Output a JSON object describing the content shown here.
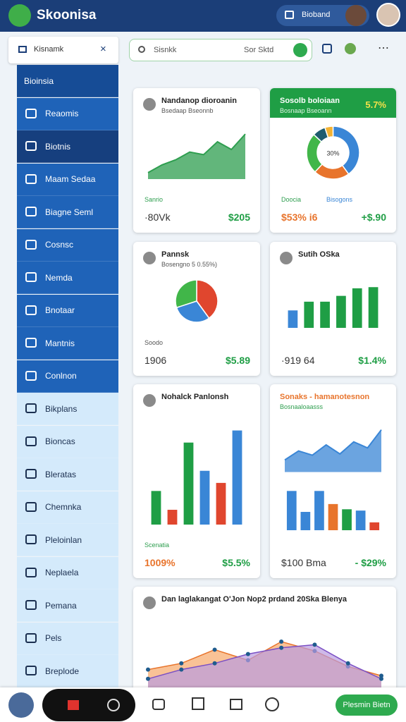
{
  "header": {
    "app_name": "Skoonisa",
    "account_button": "Bioband"
  },
  "sidebar": {
    "search": "Kisnamk",
    "items": [
      "Bioinsia",
      "Reaomis",
      "Biotnis",
      "Maam Sedaa",
      "Biagne Seml",
      "Cosnsc",
      "Nemda",
      "Bnotaar",
      "Mantnis",
      "Conlnon",
      "Bikplans",
      "Bioncas",
      "Bleratas",
      "Chemnka",
      "Pleloinlan",
      "Neplaela",
      "Pemana",
      "Pels",
      "Breplode"
    ]
  },
  "search": {
    "placeholder": "Sisnkk",
    "hint": "Sor Sktd"
  },
  "cards": [
    {
      "title": "Nandanop dioroanin",
      "subtitle": "Bsedaap Bseonnb",
      "legend": [
        "Sanrio"
      ],
      "footer": [
        "·80Vk",
        "$205"
      ],
      "chart": {
        "type": "area",
        "values": [
          10,
          22,
          30,
          42,
          38,
          58,
          46,
          70
        ],
        "ylim": [
          0,
          80
        ],
        "color": "#2e9e4f"
      }
    },
    {
      "title": "Sosolb boloiaan",
      "subtitle": "Bosnaap Bseoann",
      "badge": "5.7%",
      "legend": [
        "Doocia",
        "Bisogons"
      ],
      "footer": [
        "$53% i6",
        "+$.90"
      ],
      "chart": {
        "type": "donut",
        "center_label": "30%",
        "values": [
          40,
          22,
          25,
          8,
          5
        ],
        "colors": [
          "#3a86d6",
          "#e8742c",
          "#41b649",
          "#1f5c6e",
          "#f2b233"
        ]
      }
    },
    {
      "title": "Pannsk",
      "subtitle": "Bosengno 5 0.55%)",
      "legend": [
        "Soodo"
      ],
      "footer": [
        "1906",
        "$5.89"
      ],
      "chart": {
        "type": "pie",
        "values": [
          40,
          30,
          30
        ],
        "colors": [
          "#e0462e",
          "#3a86d6",
          "#41b649"
        ]
      }
    },
    {
      "title": "Sutih OSka",
      "footer": [
        "·919 64",
        "$1.4%"
      ],
      "chart": {
        "type": "bar",
        "values": [
          30,
          45,
          45,
          55,
          68,
          70
        ],
        "ylim": [
          0,
          80
        ],
        "colors": [
          "#3a86d6",
          "#1f9e45",
          "#1f9e45",
          "#1f9e45",
          "#1f9e45",
          "#1f9e45"
        ]
      }
    },
    {
      "title": "Nohalck Panlonsh",
      "legend": [
        "Scenatia"
      ],
      "footer": [
        "1009%",
        "$5.5%"
      ],
      "chart": {
        "type": "bar",
        "values": [
          50,
          22,
          122,
          80,
          62,
          140
        ],
        "ylim": [
          0,
          150
        ],
        "colors": [
          "#1f9e45",
          "#e0462e",
          "#1f9e45",
          "#3a86d6",
          "#e0462e",
          "#3a86d6"
        ]
      }
    },
    {
      "title": "Sonaks - hamanotesnon",
      "subtitle": "Bosnaaloaasss",
      "footer": [
        "$100 Bma",
        "- $29%"
      ],
      "chart": {
        "type": "area-bar",
        "values": [
          20,
          35,
          28,
          45,
          30,
          50,
          40,
          70
        ],
        "ylim": [
          0,
          80
        ],
        "color": "#3a86d6",
        "bar_values": [
          30,
          14,
          30,
          20,
          16,
          15,
          6
        ],
        "bar_ylim": [
          0,
          40
        ],
        "bar_colors": [
          "#3a86d6",
          "#3a86d6",
          "#3a86d6",
          "#e8742c",
          "#1f9e45",
          "#3a86d6",
          "#e0462e"
        ]
      }
    },
    {
      "title": "Dan laglakangat O'Jon Nop2 prdand 20Ska Blenya",
      "chart": {
        "type": "multi-area",
        "ylim": [
          0,
          100
        ],
        "series": [
          {
            "color": "#f7a86a",
            "values": [
              30,
              40,
              62,
              45,
              75,
              60,
              35,
              20
            ]
          },
          {
            "color": "#b99be0",
            "values": [
              15,
              30,
              40,
              55,
              65,
              70,
              40,
              15
            ]
          }
        ]
      }
    }
  ],
  "bottom_bar": {
    "action": "Plesmin Bietn"
  }
}
